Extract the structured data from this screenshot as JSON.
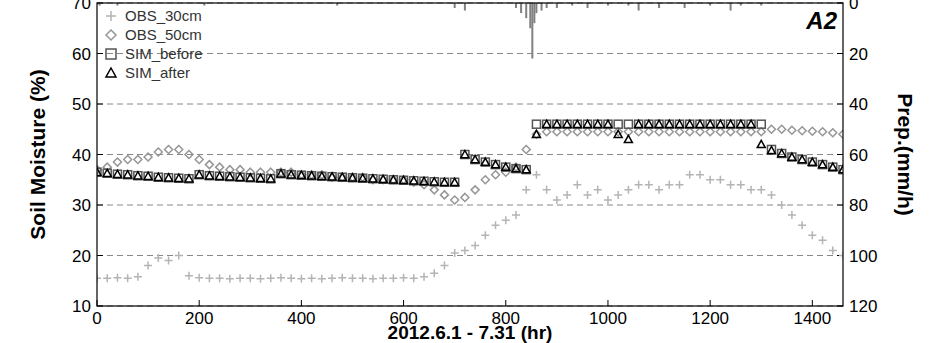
{
  "chart_data": {
    "type": "scatter",
    "title": "A2",
    "x_label": "2012.6.1 - 7.31 (hr)",
    "y_label": "Soil Moisture (%)",
    "y2_label": "Prep.(mm/h)",
    "xlim": [
      0,
      1460
    ],
    "xticks": [
      0,
      200,
      400,
      600,
      800,
      1000,
      1200,
      1400
    ],
    "ylim": [
      10,
      70
    ],
    "yticks": [
      10,
      20,
      30,
      40,
      50,
      60,
      70
    ],
    "y2lim": [
      120,
      0
    ],
    "y2ticks": [
      0,
      20,
      40,
      60,
      80,
      100,
      120
    ],
    "grid": true,
    "legend": "upper left",
    "x": [
      0,
      20,
      40,
      60,
      80,
      100,
      120,
      140,
      160,
      180,
      200,
      220,
      240,
      260,
      280,
      300,
      320,
      340,
      360,
      380,
      400,
      420,
      440,
      460,
      480,
      500,
      520,
      540,
      560,
      580,
      600,
      620,
      640,
      660,
      680,
      700,
      720,
      740,
      760,
      780,
      800,
      820,
      840,
      860,
      880,
      900,
      920,
      940,
      960,
      980,
      1000,
      1020,
      1040,
      1060,
      1080,
      1100,
      1120,
      1140,
      1160,
      1180,
      1200,
      1220,
      1240,
      1260,
      1280,
      1300,
      1320,
      1340,
      1360,
      1380,
      1400,
      1420,
      1440,
      1460
    ],
    "series": [
      {
        "name": "OBS_30cm",
        "color": "#b4b4b4",
        "marker": "plus",
        "values": [
          15.5,
          15.5,
          15.6,
          15.5,
          15.8,
          18,
          19.5,
          19,
          20,
          16,
          15.6,
          15.5,
          15.5,
          15.4,
          15.5,
          15.5,
          15.4,
          15.5,
          15.6,
          15.5,
          15.4,
          15.5,
          15.4,
          15.5,
          15.6,
          15.5,
          15.5,
          15.4,
          15.5,
          15.5,
          15.6,
          15.5,
          15.8,
          16.5,
          18,
          20.5,
          21,
          22,
          24,
          26,
          27,
          28,
          33,
          36,
          33,
          31,
          32,
          34,
          32,
          33,
          31,
          32,
          33,
          34,
          34,
          33,
          34,
          34,
          36,
          36,
          35,
          35,
          34,
          34,
          33,
          33,
          32,
          30,
          28,
          26,
          24,
          23,
          21,
          20
        ]
      },
      {
        "name": "OBS_50cm",
        "color": "#969696",
        "marker": "diamond",
        "values": [
          37,
          37.5,
          38.5,
          39,
          39,
          39.5,
          40.5,
          41,
          41,
          40,
          39,
          38,
          37.5,
          37,
          37,
          36.5,
          36.5,
          36.5,
          36.5,
          36.5,
          36,
          36,
          36,
          35.5,
          35.5,
          35.5,
          35.5,
          35,
          35,
          35,
          35,
          34.5,
          34,
          33,
          32,
          31,
          31.5,
          33,
          35,
          36,
          36.5,
          37.5,
          41,
          44,
          44.5,
          44.5,
          44.5,
          44.5,
          44.5,
          44.5,
          44.5,
          44.5,
          44.5,
          44.5,
          44.5,
          44.5,
          44.5,
          44.5,
          44.5,
          44.5,
          44.5,
          44.5,
          44.5,
          44.5,
          44.5,
          44.5,
          45,
          45,
          44.8,
          44.7,
          44.6,
          44.5,
          44.3,
          44
        ]
      },
      {
        "name": "SIM_before",
        "color": "#555555",
        "marker": "square",
        "values": [
          36.5,
          36.3,
          36.1,
          36,
          35.8,
          35.7,
          35.5,
          35.4,
          35.3,
          35.2,
          36,
          35.8,
          35.7,
          35.6,
          35.5,
          35.4,
          35.3,
          35.2,
          36.2,
          36,
          35.9,
          35.8,
          35.7,
          35.6,
          35.5,
          35.4,
          35.3,
          35.2,
          35.1,
          35,
          34.9,
          34.8,
          34.7,
          34.6,
          34.5,
          34.5,
          40,
          39,
          38.5,
          38,
          37.5,
          37.2,
          37,
          46,
          46,
          46,
          46,
          46,
          46,
          46,
          46,
          46,
          46,
          46,
          46,
          46,
          46,
          46,
          46,
          46,
          46,
          46,
          46,
          46,
          46,
          46,
          41,
          40.2,
          39.5,
          39,
          38.5,
          38,
          37.5,
          37
        ]
      },
      {
        "name": "SIM_after",
        "color": "#000000",
        "marker": "triangle",
        "values": [
          36.5,
          36.3,
          36.1,
          36,
          35.8,
          35.7,
          35.5,
          35.4,
          35.3,
          35.2,
          36,
          35.8,
          35.7,
          35.6,
          35.5,
          35.4,
          35.3,
          35.2,
          36.2,
          36,
          35.9,
          35.8,
          35.7,
          35.6,
          35.5,
          35.4,
          35.3,
          35.2,
          35.1,
          35,
          34.9,
          34.8,
          34.7,
          34.6,
          34.5,
          34.5,
          40,
          39,
          38.5,
          38,
          37.5,
          37.2,
          37,
          44,
          46,
          46,
          46,
          46,
          46,
          46,
          46,
          44,
          43,
          46,
          46,
          46,
          46,
          46,
          46,
          46,
          46,
          46,
          46,
          46,
          46,
          42,
          40.8,
          40.2,
          39.5,
          39,
          38.5,
          38,
          37.5,
          37
        ]
      },
      {
        "type": "bar",
        "axis": "y2",
        "color": "#808080",
        "x": [
          5,
          40,
          210,
          470,
          700,
          720,
          820,
          830,
          840,
          848,
          852,
          856,
          860,
          870,
          880,
          900,
          930,
          960,
          1000,
          1040,
          1060,
          1100,
          1150,
          1200,
          1240,
          1260,
          1300
        ],
        "values": [
          1,
          1,
          1,
          1,
          2,
          3,
          2,
          4,
          6,
          10,
          22,
          8,
          4,
          3,
          2,
          2,
          1,
          2,
          1,
          1,
          3,
          2,
          2,
          1,
          3,
          1,
          1
        ]
      }
    ]
  }
}
